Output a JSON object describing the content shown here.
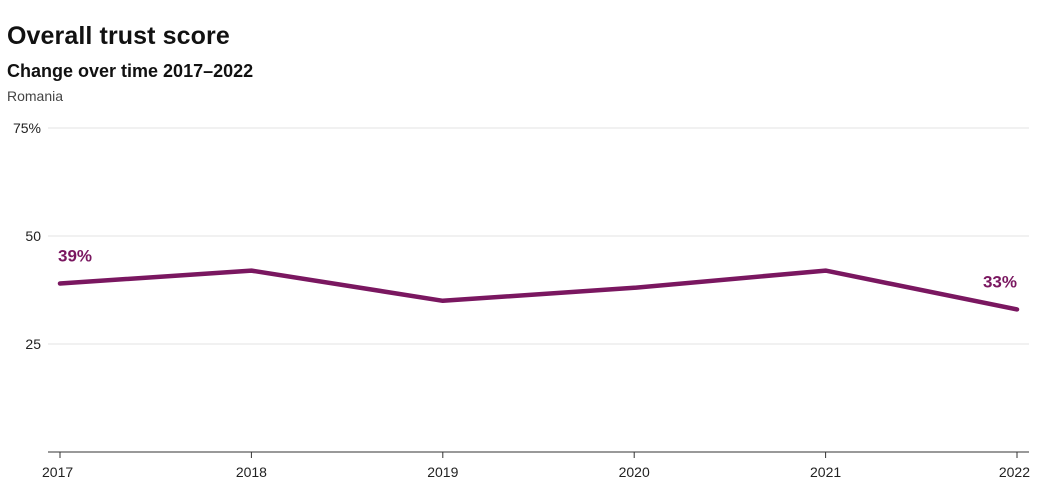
{
  "header": {
    "title": "Overall trust score",
    "subtitle": "Change over time 2017–2022",
    "note": "Romania"
  },
  "colors": {
    "series": "#7a1760",
    "grid": "#e3e3e3",
    "axis": "#333333"
  },
  "chart_data": {
    "type": "line",
    "title": "Overall trust score",
    "subtitle": "Change over time 2017–2022",
    "xlabel": "",
    "ylabel": "",
    "x": [
      "2017",
      "2018",
      "2019",
      "2020",
      "2021",
      "2022"
    ],
    "series": [
      {
        "values": [
          39,
          42,
          35,
          38,
          42,
          33
        ]
      }
    ],
    "ylim": [
      0,
      75
    ],
    "y_ticks": [
      {
        "value": 25,
        "label": "25"
      },
      {
        "value": 50,
        "label": "50"
      },
      {
        "value": 75,
        "label": "75%"
      }
    ],
    "data_labels": [
      {
        "index": 0,
        "text": "39%"
      },
      {
        "index": 5,
        "text": "33%"
      }
    ],
    "grid": true,
    "legend": "none"
  }
}
